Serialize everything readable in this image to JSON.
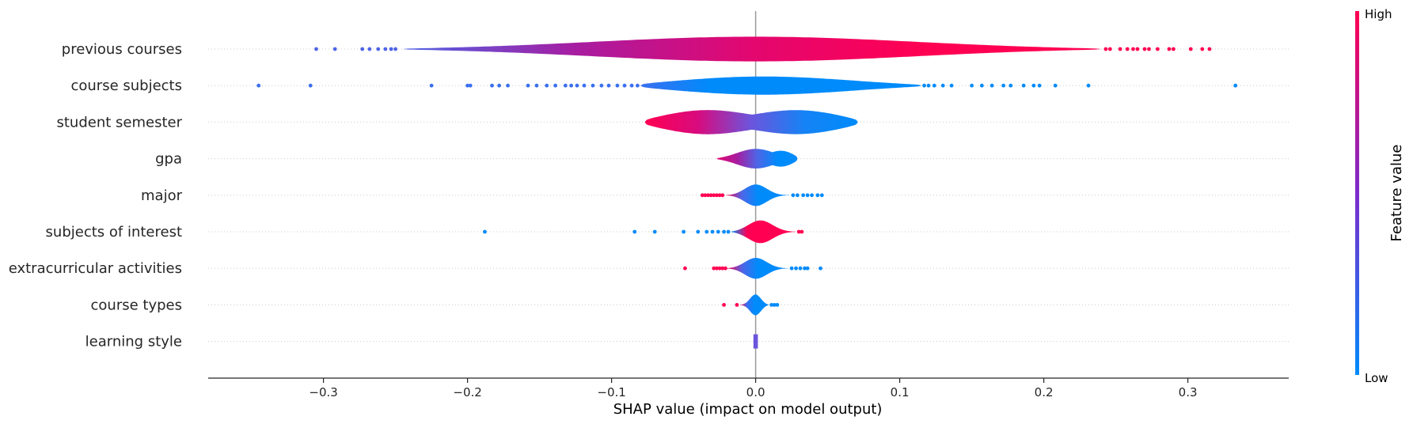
{
  "chart_data": {
    "type": "violin",
    "xlabel": "SHAP value (impact on model output)",
    "xlim": [
      -0.38,
      0.37
    ],
    "xticks": [
      -0.3,
      -0.2,
      -0.1,
      0.0,
      0.1,
      0.2,
      0.3
    ],
    "xtick_labels": [
      "−0.3",
      "−0.2",
      "−0.1",
      "0.0",
      "0.1",
      "0.2",
      "0.3"
    ],
    "colorbar": {
      "label": "Feature value",
      "high_label": "High",
      "low_label": "Low",
      "low_color": "#008bfb",
      "high_color": "#ff0052"
    },
    "features": [
      {
        "name": "previous courses",
        "range": [
          -0.245,
          0.24
        ],
        "peak": [
          0.0,
          0.0
        ],
        "width": [
          0.12,
          0.12
        ],
        "height": 0.78,
        "grad": [
          "#4e65e6",
          "#a81ca0",
          "#e3076f",
          "#ff0052",
          "#ff0052"
        ],
        "low_dots": [
          -0.305,
          -0.292,
          -0.273,
          -0.268,
          -0.262,
          -0.257,
          -0.253,
          -0.25
        ],
        "high_dots": [
          0.243,
          0.246,
          0.253,
          0.258,
          0.262,
          0.265,
          0.27,
          0.273,
          0.279,
          0.287,
          0.29,
          0.302,
          0.31,
          0.315
        ]
      },
      {
        "name": "course subjects",
        "range": [
          -0.08,
          0.115
        ],
        "peak": [
          0.0,
          0.0
        ],
        "width": [
          0.07,
          0.07
        ],
        "height": 0.58,
        "grad": [
          "#3a6ff0",
          "#008bfb",
          "#008bfb",
          "#008bfb",
          "#008bfb"
        ],
        "low_dots": [
          -0.345,
          -0.309,
          -0.225,
          -0.2,
          -0.198,
          -0.183,
          -0.178,
          -0.172,
          -0.158,
          -0.152,
          -0.145,
          -0.139,
          -0.132,
          -0.128,
          -0.124,
          -0.119,
          -0.113,
          -0.107,
          -0.102,
          -0.096,
          -0.091,
          -0.086,
          -0.082
        ],
        "high_dots": [
          0.117,
          0.12,
          0.124,
          0.13,
          0.136,
          0.15,
          0.157,
          0.164,
          0.172,
          0.177,
          0.186,
          0.193,
          0.197,
          0.208,
          0.231,
          0.333
        ]
      },
      {
        "name": "student semester",
        "range": [
          -0.077,
          0.071
        ],
        "peak": [
          -0.04,
          0.035
        ],
        "width": [
          0.035,
          0.035
        ],
        "height": 0.84,
        "grad": [
          "#ff0052",
          "#d80b7e",
          "#6b55dc",
          "#1583f5",
          "#008bfb"
        ],
        "low_dots": [],
        "high_dots": []
      },
      {
        "name": "gpa",
        "range": [
          -0.027,
          0.029
        ],
        "peak": [
          0.0,
          0.02
        ],
        "width": [
          0.014,
          0.01
        ],
        "height": 0.62,
        "grad": [
          "#e3076f",
          "#a81ca0",
          "#4e65e6",
          "#008bfb",
          "#008bfb"
        ],
        "low_dots": [],
        "high_dots": []
      },
      {
        "name": "major",
        "range": [
          -0.021,
          0.024
        ],
        "peak": [
          0.0,
          0.0
        ],
        "width": [
          0.008,
          0.008
        ],
        "height": 0.68,
        "grad": [
          "#ff0052",
          "#4e65e6",
          "#008bfb",
          "#008bfb",
          "#008bfb"
        ],
        "low_dots": [
          -0.037,
          -0.035,
          -0.033,
          -0.031,
          -0.029,
          -0.027,
          -0.025,
          -0.023
        ],
        "high_dots": [
          0.026,
          0.029,
          0.033,
          0.036,
          0.039,
          0.043,
          0.046
        ]
      },
      {
        "name": "subjects of interest",
        "range": [
          -0.017,
          0.028
        ],
        "peak": [
          0.003,
          0.003
        ],
        "width": [
          0.009,
          0.009
        ],
        "height": 0.72,
        "grad": [
          "#008bfb",
          "#ff0052",
          "#ff0052",
          "#ff0052",
          "#ff0052"
        ],
        "low_dots": [
          -0.188,
          -0.084,
          -0.07,
          -0.05,
          -0.04,
          -0.034,
          -0.03,
          -0.026,
          -0.022,
          -0.019
        ],
        "high_dots": [
          0.03,
          0.032
        ]
      },
      {
        "name": "extracurricular activities",
        "range": [
          -0.02,
          0.023
        ],
        "peak": [
          0.0,
          0.0
        ],
        "width": [
          0.008,
          0.008
        ],
        "height": 0.66,
        "grad": [
          "#ff0052",
          "#4e65e6",
          "#008bfb",
          "#008bfb",
          "#008bfb"
        ],
        "low_dots": [
          -0.049,
          -0.029,
          -0.027,
          -0.025,
          -0.023,
          -0.021
        ],
        "high_dots": [
          0.025,
          0.028,
          0.031,
          0.034,
          0.036,
          0.045
        ]
      },
      {
        "name": "course types",
        "range": [
          -0.011,
          0.009
        ],
        "peak": [
          0.0,
          0.0
        ],
        "width": [
          0.004,
          0.004
        ],
        "height": 0.66,
        "grad": [
          "#ff0052",
          "#3a6ff0",
          "#008bfb",
          "#008bfb",
          "#008bfb"
        ],
        "low_dots": [
          -0.022,
          -0.013
        ],
        "high_dots": [
          0.011,
          0.013,
          0.015
        ]
      },
      {
        "name": "learning style",
        "range": [
          -0.001,
          0.001
        ],
        "peak": [
          0.0,
          0.0
        ],
        "width": [
          0.0005,
          0.0005
        ],
        "height": 0.62,
        "grad": [
          "#6b55dc",
          "#6b55dc",
          "#6b55dc",
          "#6b55dc",
          "#6b55dc"
        ],
        "low_dots": [],
        "high_dots": []
      }
    ]
  }
}
